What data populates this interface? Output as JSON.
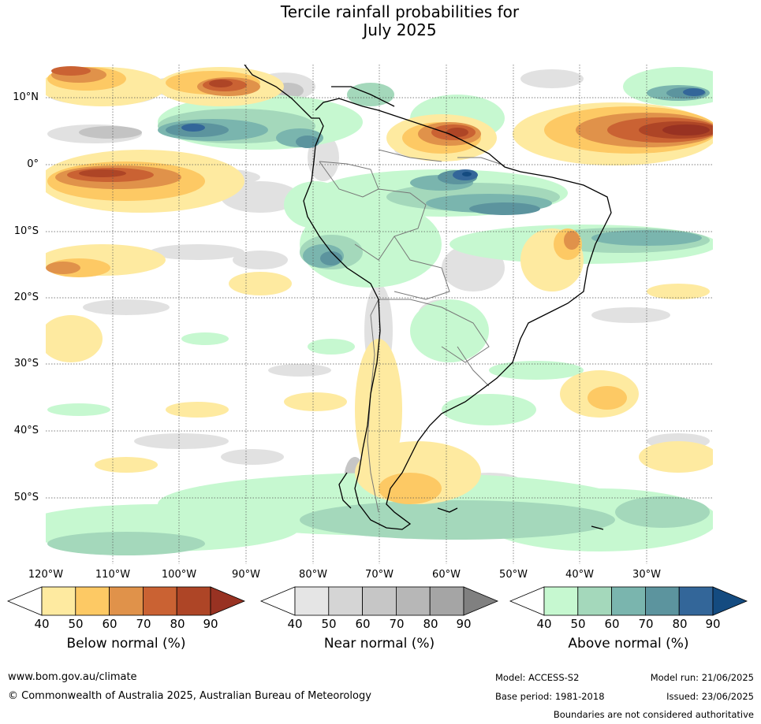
{
  "title": {
    "line1": "Tercile rainfall probabilities for",
    "line2": "July 2025"
  },
  "axes": {
    "lat_labels": [
      "10°N",
      "0°",
      "10°S",
      "20°S",
      "30°S",
      "40°S",
      "50°S"
    ],
    "lon_labels": [
      "120°W",
      "110°W",
      "100°W",
      "90°W",
      "80°W",
      "70°W",
      "60°W",
      "50°W",
      "40°W",
      "30°W"
    ]
  },
  "map": {
    "region": "South America and surrounding oceans",
    "projection": "equirectangular",
    "lon_range": [
      -120,
      -20
    ],
    "lat_range": [
      -60,
      15
    ],
    "gridlines": "dotted",
    "coastlines": true,
    "country_boundaries": true
  },
  "colorbars": [
    {
      "id": "below",
      "title": "Below normal (%)",
      "ticks": [
        "40",
        "50",
        "60",
        "70",
        "80",
        "90"
      ],
      "colors": [
        "#ffffff",
        "#feeaa0",
        "#fdc964",
        "#e0924a",
        "#ca6233",
        "#ae4526",
        "#983222"
      ]
    },
    {
      "id": "near",
      "title": "Near normal (%)",
      "ticks": [
        "40",
        "50",
        "60",
        "70",
        "80",
        "90"
      ],
      "colors": [
        "#ffffff",
        "#e5e5e5",
        "#d5d5d5",
        "#c6c6c6",
        "#b7b7b7",
        "#a5a5a5",
        "#808080"
      ]
    },
    {
      "id": "above",
      "title": "Above normal (%)",
      "ticks": [
        "40",
        "50",
        "60",
        "70",
        "80",
        "90"
      ],
      "colors": [
        "#ffffff",
        "#c6f8d0",
        "#a4d8bb",
        "#7ab5ae",
        "#5c949e",
        "#336699",
        "#144b80"
      ]
    }
  ],
  "footer": {
    "url": "www.bom.gov.au/climate",
    "copyright": "© Commonwealth of Australia 2025, Australian Bureau of Meteorology",
    "model": "Model: ACCESS-S2",
    "base_period": "Base period: 1981-2018",
    "model_run": "Model run: 21/06/2025",
    "issued": "Issued: 23/06/2025",
    "disclaimer": "Boundaries are not considered authoritative"
  }
}
